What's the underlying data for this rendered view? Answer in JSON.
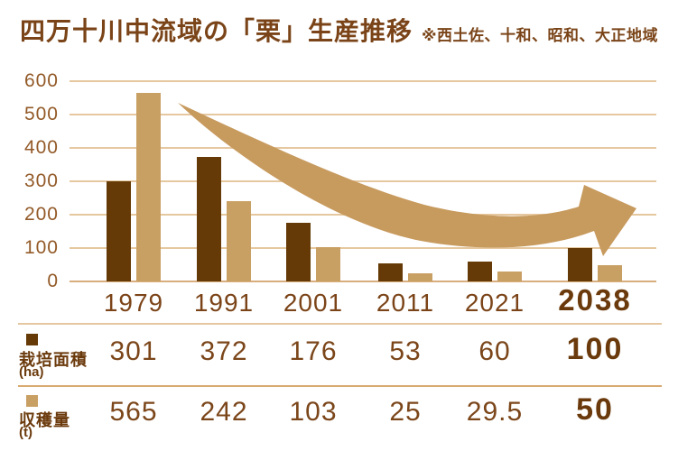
{
  "title": "四万十川中流域の「栗」生産推移",
  "note": "※西土佐、十和、昭和、大正地域",
  "chart_data": {
    "type": "bar",
    "categories": [
      "1979",
      "1991",
      "2001",
      "2011",
      "2021",
      "2038"
    ],
    "highlight_category": "2038",
    "series": [
      {
        "name": "栽培面積",
        "unit": "(ha)",
        "color": "#653A07",
        "values": [
          301,
          372,
          176,
          53,
          60,
          100
        ]
      },
      {
        "name": "収穫量",
        "unit": "(t)",
        "color": "#C9A064",
        "values": [
          565,
          242,
          103,
          25,
          29.5,
          50
        ]
      }
    ],
    "ylim": [
      0,
      600
    ],
    "yticks": [
      0,
      100,
      200,
      300,
      400,
      500,
      600
    ],
    "grid": "horizontal",
    "legend_position": "left-of-table-rows",
    "annotation": "declining-curved-arrow"
  },
  "colors": {
    "title": "#7A4418",
    "axis_label": "#935A28",
    "year_label": "#7B4418",
    "value_text": "#7B461A",
    "highlight_text": "#6B3A0C",
    "bar_dark": "#653A07",
    "bar_tan": "#C9A064",
    "arrow": "#C79A5E",
    "gridline": "#E6C8A0",
    "baseline": "#D8AE7E",
    "divider_top": "#E5C8A2",
    "divider_bottom": "#D9AA70"
  }
}
